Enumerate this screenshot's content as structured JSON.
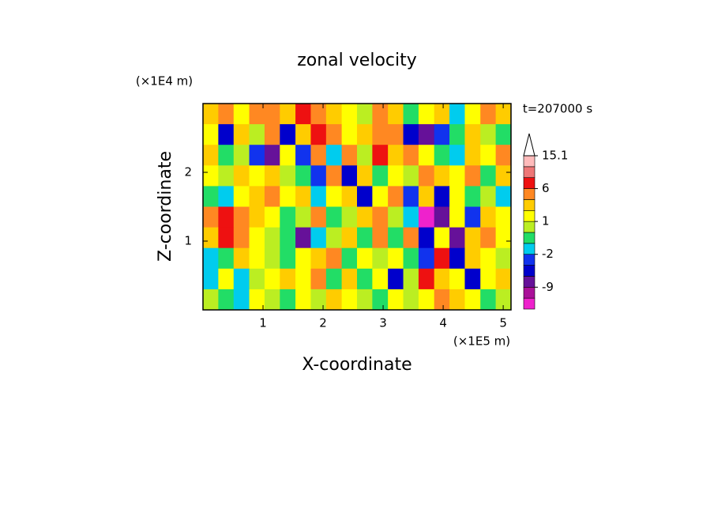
{
  "chart_data": {
    "type": "contour",
    "title": "zonal velocity",
    "x_label": "X-coordinate",
    "y_label": "Z-coordinate",
    "x_unit": "(×1E5 m)",
    "y_unit": "(×1E4 m)",
    "time_label": "t=207000 s",
    "xlim": [
      0,
      5.13
    ],
    "ylim": [
      0,
      3
    ],
    "xticks": [
      1,
      2,
      3,
      4,
      5
    ],
    "yticks": [
      1,
      2
    ],
    "x": [
      0.13,
      0.38,
      0.64,
      0.9,
      1.15,
      1.41,
      1.67,
      1.92,
      2.18,
      2.44,
      2.69,
      2.95,
      3.21,
      3.46,
      3.72,
      3.98,
      4.23,
      4.49,
      4.75,
      5.0
    ],
    "y": [
      2.85,
      2.55,
      2.25,
      1.95,
      1.65,
      1.35,
      1.05,
      0.75,
      0.45,
      0.15
    ],
    "z": [
      [
        2,
        3,
        1,
        3,
        4,
        2,
        6,
        3,
        2,
        1,
        0,
        3,
        2,
        -1,
        1,
        2,
        -2,
        1,
        3,
        2
      ],
      [
        1,
        -6,
        2,
        0,
        4,
        -6,
        2,
        6,
        3,
        1,
        2,
        4,
        3,
        -6,
        -9,
        -3,
        -1,
        2,
        0,
        -1
      ],
      [
        2,
        -1,
        0,
        -3,
        -9,
        1,
        -3,
        4,
        -2,
        3,
        0,
        6,
        2,
        3,
        1,
        -1,
        -2,
        2,
        1,
        3
      ],
      [
        1,
        0,
        2,
        1,
        2,
        0,
        -1,
        -3,
        3,
        -6,
        2,
        -1,
        1,
        0,
        3,
        2,
        1,
        3,
        -1,
        2
      ],
      [
        -1,
        -2,
        1,
        2,
        3,
        1,
        2,
        -2,
        1,
        2,
        -6,
        1,
        3,
        -3,
        2,
        -6,
        1,
        -1,
        0,
        -2
      ],
      [
        3,
        6,
        4,
        2,
        1,
        -1,
        0,
        3,
        -1,
        0,
        2,
        3,
        0,
        -2,
        -15,
        -9,
        1,
        -3,
        2,
        1
      ],
      [
        2,
        6,
        3,
        1,
        0,
        -1,
        -9,
        -2,
        0,
        2,
        -1,
        3,
        -1,
        4,
        -6,
        1,
        -9,
        2,
        3,
        1
      ],
      [
        -2,
        -1,
        2,
        1,
        0,
        -1,
        1,
        2,
        3,
        -1,
        1,
        0,
        1,
        -1,
        -3,
        6,
        -6,
        2,
        1,
        0
      ],
      [
        -2,
        1,
        -2,
        0,
        1,
        2,
        1,
        3,
        -1,
        2,
        -1,
        1,
        -6,
        0,
        6,
        2,
        1,
        -6,
        1,
        2
      ],
      [
        0,
        -1,
        -2,
        1,
        0,
        -1,
        1,
        0,
        2,
        1,
        0,
        -1,
        1,
        0,
        1,
        3,
        2,
        1,
        -1,
        0
      ]
    ],
    "levels": [
      -15,
      -12,
      -9,
      -6,
      -3,
      -2,
      -1,
      0,
      1,
      2,
      3,
      6,
      9,
      12,
      15.1
    ],
    "colors": [
      "#ee22cc",
      "#aa1199",
      "#661199",
      "#0000cc",
      "#1133ee",
      "#00ccee",
      "#22dd66",
      "#bbee22",
      "#ffff00",
      "#ffcc00",
      "#ff8822",
      "#ee1111",
      "#ee7777",
      "#ffbbbb"
    ],
    "colorbar_ticks": [
      15.1,
      6,
      1,
      -2,
      -9
    ]
  }
}
